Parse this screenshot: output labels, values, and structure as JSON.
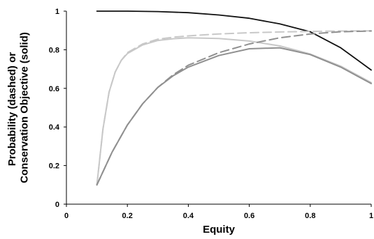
{
  "chart_data": {
    "type": "line",
    "title": "",
    "xlabel": "Equity",
    "ylabel_lines": [
      "Probability (dashed) or",
      "Conservation Objective (solid)"
    ],
    "xlim": [
      0,
      1
    ],
    "ylim": [
      0,
      1
    ],
    "xticks": [
      "0",
      "0.2",
      "0.4",
      "0.6",
      "0.8",
      "1"
    ],
    "yticks": [
      "0",
      "0.2",
      "0.4",
      "0.6",
      "0.8",
      "1"
    ],
    "grid": false,
    "legend": "none",
    "series": [
      {
        "color": "#111111",
        "dash": "solid",
        "width": 1.8,
        "x": [
          0.1,
          0.2,
          0.3,
          0.4,
          0.5,
          0.6,
          0.7,
          0.8,
          0.9,
          1.0
        ],
        "y": [
          1.0,
          1.0,
          0.998,
          0.992,
          0.98,
          0.963,
          0.934,
          0.893,
          0.81,
          0.695
        ]
      },
      {
        "color": "#c8c8c8",
        "dash": "dashed",
        "width": 2,
        "x": [
          0.1,
          0.12,
          0.14,
          0.16,
          0.18,
          0.2,
          0.25,
          0.3,
          0.35,
          0.4,
          0.5,
          0.6,
          0.7,
          0.8,
          0.9,
          1.0
        ],
        "y": [
          0.1,
          0.39,
          0.58,
          0.685,
          0.745,
          0.785,
          0.83,
          0.855,
          0.865,
          0.872,
          0.882,
          0.888,
          0.892,
          0.895,
          0.897,
          0.898
        ]
      },
      {
        "color": "#c8c8c8",
        "dash": "solid",
        "width": 2,
        "x": [
          0.1,
          0.12,
          0.14,
          0.16,
          0.18,
          0.2,
          0.25,
          0.3,
          0.35,
          0.4,
          0.5,
          0.6,
          0.7,
          0.8,
          0.9,
          1.0
        ],
        "y": [
          0.1,
          0.39,
          0.58,
          0.685,
          0.745,
          0.78,
          0.825,
          0.848,
          0.857,
          0.862,
          0.858,
          0.845,
          0.82,
          0.778,
          0.715,
          0.63
        ]
      },
      {
        "color": "#909090",
        "dash": "dashed",
        "width": 2,
        "x": [
          0.1,
          0.15,
          0.2,
          0.25,
          0.3,
          0.35,
          0.4,
          0.5,
          0.6,
          0.7,
          0.8,
          0.9,
          1.0
        ],
        "y": [
          0.1,
          0.27,
          0.41,
          0.52,
          0.605,
          0.67,
          0.72,
          0.785,
          0.83,
          0.862,
          0.882,
          0.893,
          0.897
        ]
      },
      {
        "color": "#909090",
        "dash": "solid",
        "width": 2,
        "x": [
          0.1,
          0.15,
          0.2,
          0.25,
          0.3,
          0.35,
          0.4,
          0.5,
          0.6,
          0.7,
          0.8,
          0.9,
          1.0
        ],
        "y": [
          0.1,
          0.27,
          0.41,
          0.52,
          0.605,
          0.665,
          0.71,
          0.77,
          0.805,
          0.81,
          0.775,
          0.71,
          0.625
        ]
      }
    ]
  }
}
